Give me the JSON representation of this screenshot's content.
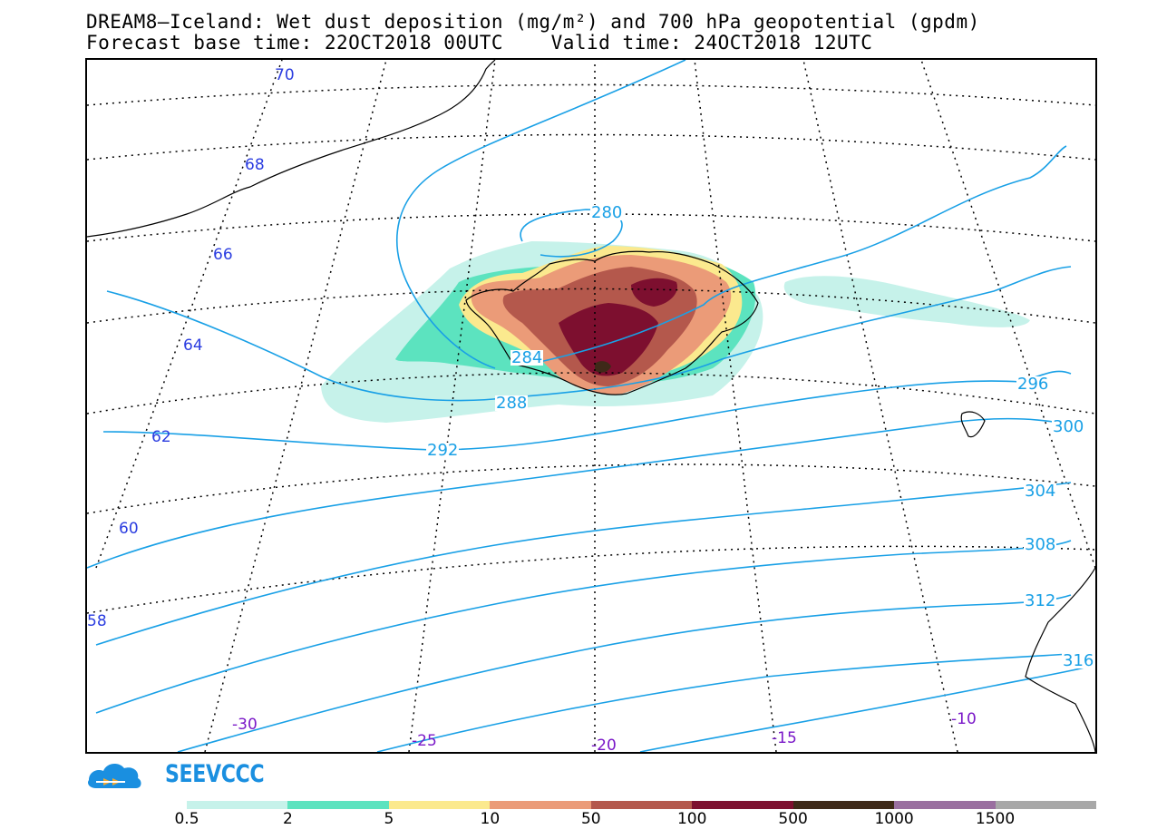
{
  "title_line1": "DREAM8–Iceland: Wet dust deposition (mg/m²) and 700 hPa geopotential (gpdm)",
  "title_line2": "Forecast base time: 22OCT2018 00UTC    Valid time: 24OCT2018 12UTC",
  "map": {
    "latitude_labels": [
      "70",
      "68",
      "66",
      "64",
      "62",
      "60",
      "58"
    ],
    "longitude_labels": [
      "-30",
      "-25",
      "-20",
      "-15",
      "-10"
    ],
    "geopotential_labels": [
      "280",
      "284",
      "288",
      "292",
      "296",
      "300",
      "304",
      "308",
      "312",
      "316"
    ],
    "colors": {
      "frame": "#000000",
      "coastline": "#000000",
      "graticule": "#000000",
      "geopotential_contour": "#19a0e6",
      "latitude_label": "#2b3de0",
      "longitude_label": "#7a18c8"
    }
  },
  "logo": {
    "text": "SEEVCCC",
    "icon": "cloud-icon",
    "color": "#1a8fe0",
    "arrow_color": "#f0a830"
  },
  "legend": {
    "colors": [
      "#c6f2ea",
      "#5ce3bf",
      "#fbe98e",
      "#eb9b78",
      "#b4584c",
      "#7d0f2f",
      "#3e2918",
      "#9a6fa0",
      "#a8a8a8"
    ],
    "ticks": [
      "0.5",
      "2",
      "5",
      "10",
      "50",
      "100",
      "500",
      "1000",
      "1500"
    ]
  }
}
